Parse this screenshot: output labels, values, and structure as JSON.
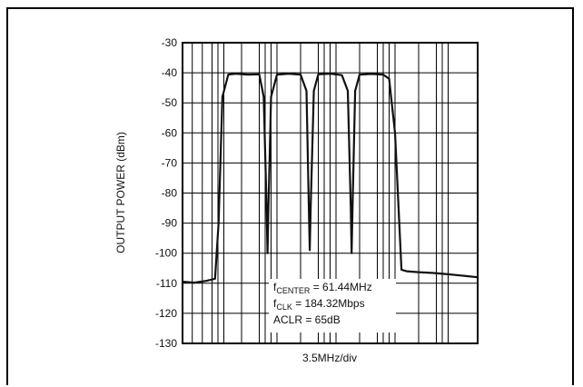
{
  "chart_data": {
    "type": "line",
    "ylabel": "OUTPUT POWER (dBm)",
    "xlabel": "3.5MHz/div",
    "ylim": [
      -130,
      -30
    ],
    "yticks": [
      -30,
      -40,
      -50,
      -60,
      -70,
      -80,
      -90,
      -100,
      -110,
      -120,
      -130
    ],
    "xlim": [
      0,
      10
    ],
    "x_unit_per_div": "3.5MHz",
    "grid": true,
    "annotations": [
      {
        "line": 1,
        "prefix": "f",
        "sub": "CENTER",
        "rest": " = 61.44MHz"
      },
      {
        "line": 2,
        "prefix": "f",
        "sub": "CLK",
        "rest": " = 184.32Mbps"
      },
      {
        "line": 3,
        "prefix": "",
        "sub": "",
        "rest": "ACLR = 65dB"
      }
    ],
    "series": [
      {
        "x": [
          0.0,
          0.4,
          0.8,
          1.1,
          1.22,
          1.35,
          1.55,
          1.8,
          2.2,
          2.6,
          2.75,
          2.85,
          2.88,
          2.91,
          3.0,
          3.2,
          3.6,
          4.0,
          4.2,
          4.28,
          4.31,
          4.34,
          4.45,
          4.6,
          5.0,
          5.4,
          5.6,
          5.7,
          5.73,
          5.76,
          5.85,
          6.0,
          6.4,
          6.8,
          7.0,
          7.2,
          7.42,
          7.6,
          8.0,
          8.5,
          9.0,
          9.5,
          10.0
        ],
        "y": [
          -109.5,
          -109.8,
          -109.2,
          -108.5,
          -90,
          -48,
          -40.6,
          -40.3,
          -40.6,
          -40.5,
          -48,
          -85,
          -100,
          -85,
          -48,
          -40.6,
          -40.3,
          -40.6,
          -46,
          -85,
          -99,
          -85,
          -46,
          -40.5,
          -40.3,
          -40.8,
          -46,
          -85,
          -100,
          -85,
          -46,
          -40.6,
          -40.4,
          -40.6,
          -42,
          -60,
          -105.5,
          -106,
          -106.3,
          -106.6,
          -107,
          -107.5,
          -108
        ]
      }
    ]
  }
}
